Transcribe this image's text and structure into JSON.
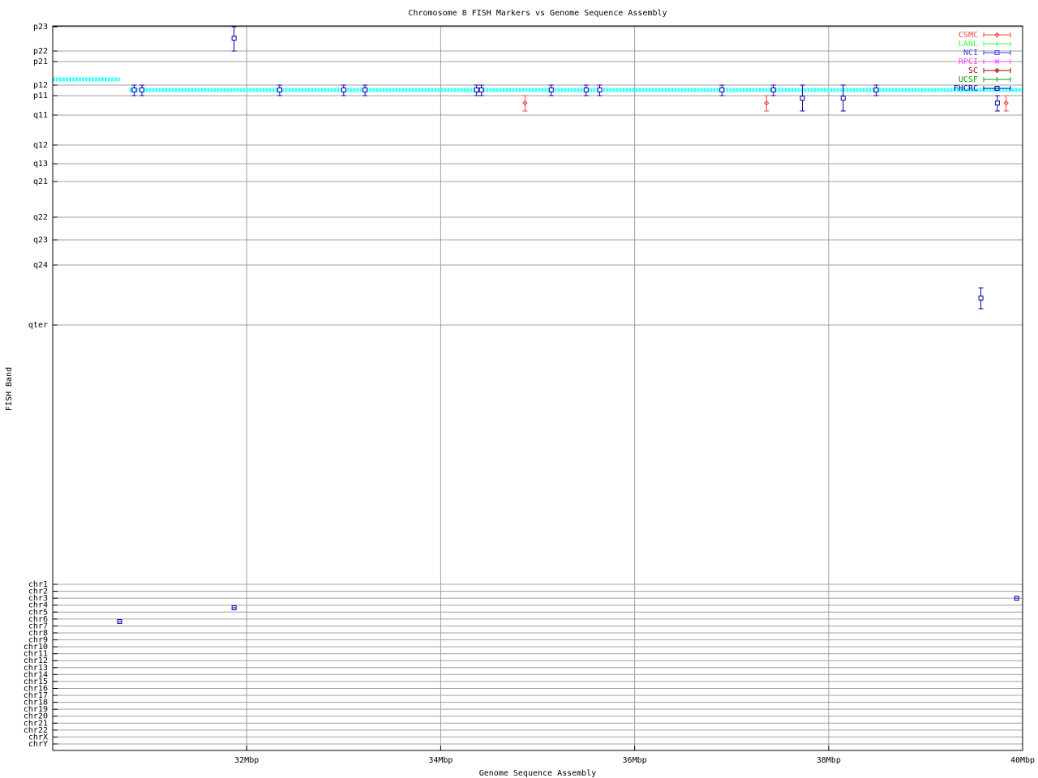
{
  "chart_data": {
    "type": "scatter",
    "title": "Chromosome 8 FISH Markers vs Genome Sequence Assembly",
    "xlabel": "Genome Sequence Assembly",
    "ylabel": "FISH Band",
    "xlim": [
      30,
      40
    ],
    "x_unit": "Mbp",
    "x_ticks": [
      {
        "v": 32,
        "label": "32Mbp"
      },
      {
        "v": 34,
        "label": "34Mbp"
      },
      {
        "v": 36,
        "label": "36Mbp"
      },
      {
        "v": 38,
        "label": "38Mbp"
      },
      {
        "v": 40,
        "label": "40Mbp"
      }
    ],
    "band_ticks": [
      "p23",
      "p22",
      "p21",
      "p12",
      "p11",
      "q11",
      "q12",
      "q13",
      "q21",
      "q22",
      "q23",
      "q24",
      "qter"
    ],
    "chr_ticks": [
      "chr1",
      "chr2",
      "chr3",
      "chr4",
      "chr5",
      "chr6",
      "chr7",
      "chr8",
      "chr9",
      "chr10",
      "chr11",
      "chr12",
      "chr13",
      "chr14",
      "chr15",
      "chr16",
      "chr17",
      "chr18",
      "chr19",
      "chr20",
      "chr21",
      "chr22",
      "chrX",
      "chrY"
    ],
    "y_encoding": "band index between band_ticks (0 = p23)",
    "grid": true,
    "legend_placement": "top-right",
    "legend": [
      {
        "name": "CSMC",
        "color": "#ff4040",
        "marker": "diamond"
      },
      {
        "name": "LANL",
        "color": "#40ff40",
        "marker": "plus"
      },
      {
        "name": "NCI",
        "color": "#4040ff",
        "marker": "square"
      },
      {
        "name": "RPCI",
        "color": "#ff40ff",
        "marker": "x"
      },
      {
        "name": "SC",
        "color": "#a00000",
        "marker": "diamond"
      },
      {
        "name": "UCSF",
        "color": "#00a000",
        "marker": "plus"
      },
      {
        "name": "FHCRC",
        "color": "#0000a0",
        "marker": "square"
      }
    ],
    "assembly_segments": {
      "color": "#40ffff",
      "segments": [
        {
          "x0": 30,
          "x1": 30.69,
          "y": 2.76
        },
        {
          "x0": 30.79,
          "x1": 40,
          "y": 3.46
        }
      ]
    },
    "band_points": [
      {
        "series": "FHCRC",
        "x": 31.87,
        "y": 0.47,
        "ylo": 0,
        "yhi": 1
      },
      {
        "series": "FHCRC",
        "x": 30.84,
        "y": 3.46,
        "ylo": 3,
        "yhi": 4
      },
      {
        "series": "FHCRC",
        "x": 30.92,
        "y": 3.46,
        "ylo": 3,
        "yhi": 4
      },
      {
        "series": "FHCRC",
        "x": 32.34,
        "y": 3.46,
        "ylo": 3,
        "yhi": 4
      },
      {
        "series": "FHCRC",
        "x": 33.0,
        "y": 3.46,
        "ylo": 3,
        "yhi": 4
      },
      {
        "series": "FHCRC",
        "x": 33.22,
        "y": 3.46,
        "ylo": 3,
        "yhi": 4
      },
      {
        "series": "FHCRC",
        "x": 34.37,
        "y": 3.46,
        "ylo": 3,
        "yhi": 4
      },
      {
        "series": "FHCRC",
        "x": 34.42,
        "y": 3.46,
        "ylo": 3,
        "yhi": 4
      },
      {
        "series": "CSMC",
        "x": 34.87,
        "y": 4.38,
        "ylo": 4,
        "yhi": 4.79
      },
      {
        "series": "FHCRC",
        "x": 35.14,
        "y": 3.46,
        "ylo": 3,
        "yhi": 4
      },
      {
        "series": "FHCRC",
        "x": 35.5,
        "y": 3.46,
        "ylo": 3,
        "yhi": 4
      },
      {
        "series": "FHCRC",
        "x": 35.64,
        "y": 3.46,
        "ylo": 3,
        "yhi": 4
      },
      {
        "series": "FHCRC",
        "x": 36.9,
        "y": 3.46,
        "ylo": 3,
        "yhi": 4
      },
      {
        "series": "CSMC",
        "x": 37.36,
        "y": 4.38,
        "ylo": 4,
        "yhi": 4.79
      },
      {
        "series": "FHCRC",
        "x": 37.43,
        "y": 3.46,
        "ylo": 3,
        "yhi": 4
      },
      {
        "series": "FHCRC",
        "x": 37.73,
        "y": 4.13,
        "ylo": 3,
        "yhi": 4.79
      },
      {
        "series": "FHCRC",
        "x": 38.15,
        "y": 4.13,
        "ylo": 3,
        "yhi": 4.79
      },
      {
        "series": "FHCRC",
        "x": 38.49,
        "y": 3.46,
        "ylo": 3,
        "yhi": 4
      },
      {
        "series": "FHCRC",
        "x": 39.57,
        "y": 11.55,
        "ylo": 11.38,
        "yhi": 11.73
      },
      {
        "series": "FHCRC",
        "x": 39.74,
        "y": 4.38,
        "ylo": 4,
        "yhi": 4.79
      },
      {
        "series": "CSMC",
        "x": 39.83,
        "y": 4.38,
        "ylo": 4,
        "yhi": 4.79
      }
    ],
    "chr_points": [
      {
        "series": "FHCRC",
        "x": 30.69,
        "chr_index": 5.37
      },
      {
        "series": "FHCRC",
        "x": 31.87,
        "chr_index": 3.38
      },
      {
        "series": "FHCRC",
        "x": 39.94,
        "chr_index": 2.0
      }
    ]
  }
}
